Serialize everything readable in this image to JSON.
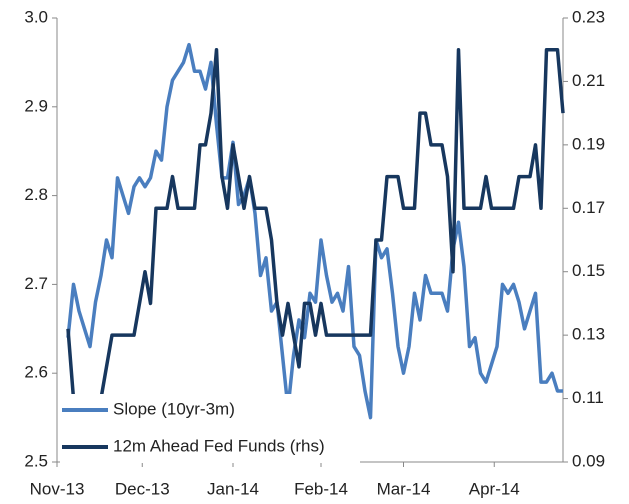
{
  "chart_data": {
    "type": "line",
    "x": [
      2,
      3,
      4,
      5,
      6,
      7,
      8,
      9,
      10,
      11,
      12,
      13,
      14,
      15,
      16,
      17,
      18,
      19,
      20,
      21,
      22,
      23,
      24,
      25,
      26,
      27,
      28,
      29,
      30,
      31,
      32,
      33,
      34,
      35,
      36,
      37,
      38,
      39,
      40,
      41,
      42,
      43,
      44,
      45,
      46,
      47,
      48,
      49,
      50,
      51,
      52,
      53,
      54,
      55,
      56,
      57,
      58,
      59,
      60,
      61,
      62,
      63,
      64,
      65,
      66,
      67,
      68,
      69,
      70,
      71,
      72,
      73,
      74,
      75,
      76,
      77,
      78,
      79,
      80,
      81,
      82,
      83,
      84,
      85,
      86,
      87,
      88,
      89,
      90,
      91,
      92
    ],
    "xlim": [
      0,
      92
    ],
    "xticks": [
      {
        "value": 0,
        "label": "Nov-13"
      },
      {
        "value": 15.5,
        "label": "Dec-13"
      },
      {
        "value": 32,
        "label": "Jan-14"
      },
      {
        "value": 48,
        "label": "Feb-14"
      },
      {
        "value": 63,
        "label": "Mar-14"
      },
      {
        "value": 79.5,
        "label": "Apr-14"
      }
    ],
    "ylim": [
      2.5,
      3.0
    ],
    "yticks": [
      2.5,
      2.6,
      2.7,
      2.8,
      2.9,
      {
        "value": 3.0,
        "label": "3.0"
      }
    ],
    "y2lim": [
      0.09,
      0.23
    ],
    "y2ticks": [
      0.09,
      0.11,
      0.13,
      0.15,
      0.17,
      0.19,
      0.21,
      0.23
    ],
    "legend": "lower left",
    "series": [
      {
        "name": "Slope (10yr-3m)",
        "color": "#4a7ebf",
        "values": [
          2.64,
          2.7,
          2.67,
          2.65,
          2.63,
          2.68,
          2.71,
          2.75,
          2.73,
          2.82,
          2.8,
          2.78,
          2.81,
          2.82,
          2.81,
          2.82,
          2.85,
          2.84,
          2.9,
          2.93,
          2.94,
          2.95,
          2.97,
          2.94,
          2.94,
          2.92,
          2.95,
          2.88,
          2.82,
          2.82,
          2.86,
          2.79,
          2.8,
          2.82,
          2.78,
          2.71,
          2.73,
          2.67,
          2.68,
          2.62,
          2.56,
          2.62,
          2.66,
          2.64,
          2.69,
          2.68,
          2.75,
          2.71,
          2.68,
          2.69,
          2.67,
          2.72,
          2.63,
          2.62,
          2.58,
          2.55,
          2.75,
          2.73,
          2.74,
          2.69,
          2.63,
          2.6,
          2.63,
          2.69,
          2.66,
          2.71,
          2.69,
          2.69,
          2.69,
          2.67,
          2.74,
          2.77,
          2.72,
          2.63,
          2.64,
          2.6,
          2.59,
          2.61,
          2.63,
          2.7,
          2.69,
          2.7,
          2.68,
          2.65,
          2.67,
          2.69,
          2.59,
          2.59,
          2.6,
          2.58,
          2.58
        ]
      },
      {
        "name": "12m Ahead Fed Funds (rhs)",
        "color": "#17375e",
        "axis": "y2",
        "values": [
          0.132,
          0.11,
          0.11,
          0.11,
          0.11,
          0.11,
          0.11,
          0.12,
          0.13,
          0.13,
          0.13,
          0.13,
          0.13,
          0.14,
          0.15,
          0.14,
          0.17,
          0.17,
          0.17,
          0.18,
          0.17,
          0.17,
          0.17,
          0.17,
          0.19,
          0.19,
          0.2,
          0.22,
          0.18,
          0.17,
          0.19,
          0.18,
          0.17,
          0.18,
          0.17,
          0.17,
          0.17,
          0.16,
          0.14,
          0.13,
          0.14,
          0.13,
          0.12,
          0.14,
          0.14,
          0.13,
          0.14,
          0.13,
          0.13,
          0.13,
          0.13,
          0.13,
          0.13,
          0.13,
          0.13,
          0.13,
          0.16,
          0.16,
          0.18,
          0.18,
          0.18,
          0.17,
          0.17,
          0.17,
          0.2,
          0.2,
          0.19,
          0.19,
          0.19,
          0.18,
          0.15,
          0.22,
          0.17,
          0.17,
          0.17,
          0.17,
          0.18,
          0.17,
          0.17,
          0.17,
          0.17,
          0.17,
          0.18,
          0.18,
          0.18,
          0.19,
          0.17,
          0.22,
          0.22,
          0.22,
          0.2
        ]
      }
    ]
  }
}
